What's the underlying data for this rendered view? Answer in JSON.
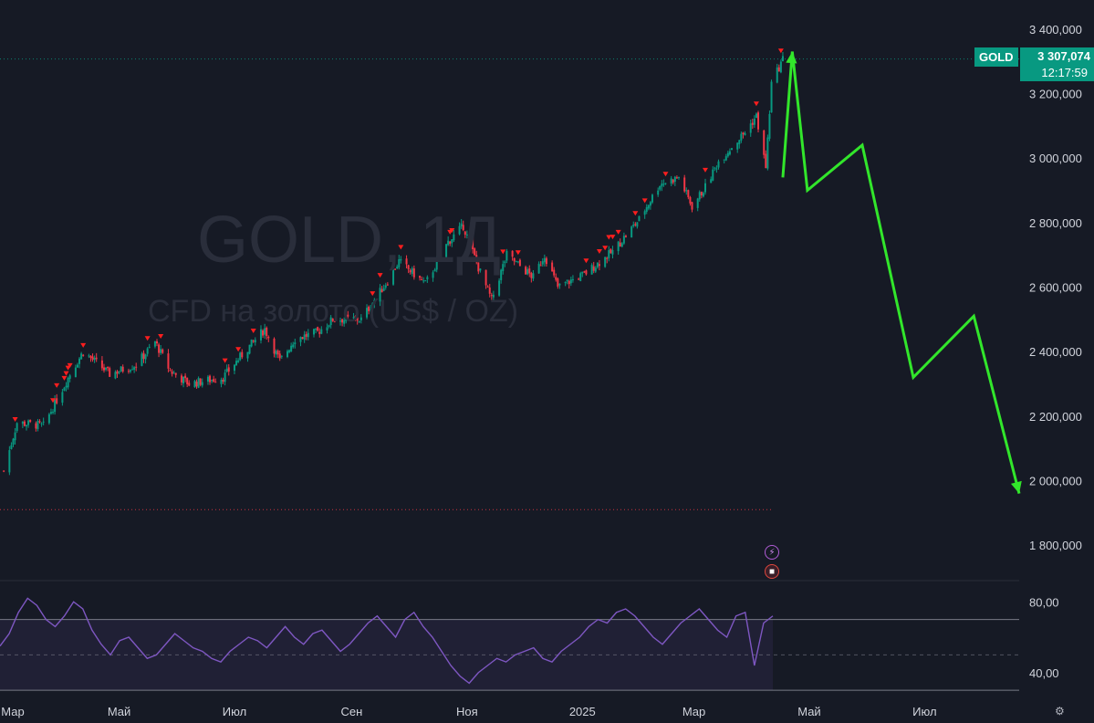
{
  "ticker": "GOLD",
  "watermark": {
    "title": "GOLD, 1Д",
    "subtitle": "CFD на золото (US$ / OZ)"
  },
  "last_price": {
    "value": "3 307,074",
    "countdown": "12:17:59"
  },
  "colors": {
    "background": "#161a25",
    "up": "#089981",
    "down": "#f23645",
    "forecast": "#32e62b",
    "rsi": "#7e57c2",
    "marker": "#ff1e1e"
  },
  "chart_data": [
    {
      "type": "candlestick",
      "title": "GOLD, 1Д",
      "y_ticks": [
        "3 400,000",
        "3 200,000",
        "3 000,000",
        "2 800,000",
        "2 600,000",
        "2 400,000",
        "2 200,000",
        "2 000,000",
        "1 800,000"
      ],
      "y_tick_values": [
        3400,
        3200,
        3000,
        2800,
        2600,
        2400,
        2200,
        2000,
        1800
      ],
      "ylim": [
        1690,
        3490
      ],
      "x_ticks": [
        "Мар",
        "Май",
        "Июл",
        "Сен",
        "Ноя",
        "2025",
        "Мар",
        "Май",
        "Июл"
      ],
      "x_tick_dates": [
        "2024-03-01",
        "2024-05-01",
        "2024-07-01",
        "2024-09-01",
        "2024-11-01",
        "2025-01-01",
        "2025-03-01",
        "2025-05-01",
        "2025-07-01"
      ],
      "xlim": [
        "2024-02-28",
        "2025-08-20"
      ],
      "close_path": [
        [
          "2024-03-01",
          2030
        ],
        [
          "2024-03-08",
          2180
        ],
        [
          "2024-03-22",
          2170
        ],
        [
          "2024-04-05",
          2330
        ],
        [
          "2024-04-12",
          2400
        ],
        [
          "2024-04-26",
          2330
        ],
        [
          "2024-05-10",
          2360
        ],
        [
          "2024-05-20",
          2430
        ],
        [
          "2024-05-28",
          2340
        ],
        [
          "2024-06-07",
          2300
        ],
        [
          "2024-06-25",
          2320
        ],
        [
          "2024-07-05",
          2390
        ],
        [
          "2024-07-17",
          2470
        ],
        [
          "2024-07-25",
          2370
        ],
        [
          "2024-08-02",
          2440
        ],
        [
          "2024-08-14",
          2460
        ],
        [
          "2024-08-22",
          2500
        ],
        [
          "2024-09-06",
          2500
        ],
        [
          "2024-09-20",
          2620
        ],
        [
          "2024-09-26",
          2680
        ],
        [
          "2024-10-10",
          2610
        ],
        [
          "2024-10-22",
          2740
        ],
        [
          "2024-10-30",
          2790
        ],
        [
          "2024-11-07",
          2660
        ],
        [
          "2024-11-14",
          2560
        ],
        [
          "2024-11-22",
          2700
        ],
        [
          "2024-12-06",
          2630
        ],
        [
          "2024-12-12",
          2700
        ],
        [
          "2024-12-19",
          2600
        ],
        [
          "2025-01-02",
          2640
        ],
        [
          "2025-01-17",
          2710
        ],
        [
          "2025-01-31",
          2810
        ],
        [
          "2025-02-11",
          2920
        ],
        [
          "2025-02-21",
          2940
        ],
        [
          "2025-02-28",
          2850
        ],
        [
          "2025-03-07",
          2910
        ],
        [
          "2025-03-14",
          2990
        ],
        [
          "2025-03-28",
          3080
        ],
        [
          "2025-04-03",
          3130
        ],
        [
          "2025-04-08",
          2970
        ],
        [
          "2025-04-11",
          3230
        ],
        [
          "2025-04-17",
          3307
        ]
      ],
      "forecast": {
        "color": "#32e62b",
        "points": [
          [
            "2025-04-17",
            2940
          ],
          [
            "2025-04-22",
            3330
          ],
          [
            "2025-04-30",
            2900
          ],
          [
            "2025-05-29",
            3040
          ],
          [
            "2025-06-25",
            2320
          ],
          [
            "2025-07-27",
            2510
          ],
          [
            "2025-08-20",
            1960
          ]
        ]
      },
      "reference_lines": [
        {
          "value": 3307,
          "style": "dotted",
          "color": "#089981"
        },
        {
          "value": 1910,
          "style": "dotted",
          "color": "#f23645"
        }
      ]
    },
    {
      "type": "line",
      "title": "RSI",
      "y_ticks": [
        "80,00",
        "40,00"
      ],
      "y_tick_values": [
        80,
        40
      ],
      "ylim": [
        28,
        92
      ],
      "band": [
        30,
        70
      ],
      "midline": 50,
      "values": [
        55,
        62,
        74,
        82,
        78,
        70,
        66,
        72,
        80,
        76,
        64,
        56,
        50,
        58,
        60,
        54,
        48,
        50,
        56,
        62,
        58,
        54,
        52,
        48,
        46,
        52,
        56,
        60,
        58,
        54,
        60,
        66,
        60,
        56,
        62,
        64,
        58,
        52,
        56,
        62,
        68,
        72,
        66,
        60,
        70,
        74,
        66,
        60,
        52,
        44,
        38,
        34,
        40,
        44,
        48,
        46,
        50,
        52,
        54,
        48,
        46,
        52,
        56,
        60,
        66,
        70,
        68,
        74,
        76,
        72,
        66,
        60,
        56,
        62,
        68,
        72,
        76,
        70,
        64,
        60,
        72,
        74,
        44,
        68,
        72
      ]
    }
  ]
}
